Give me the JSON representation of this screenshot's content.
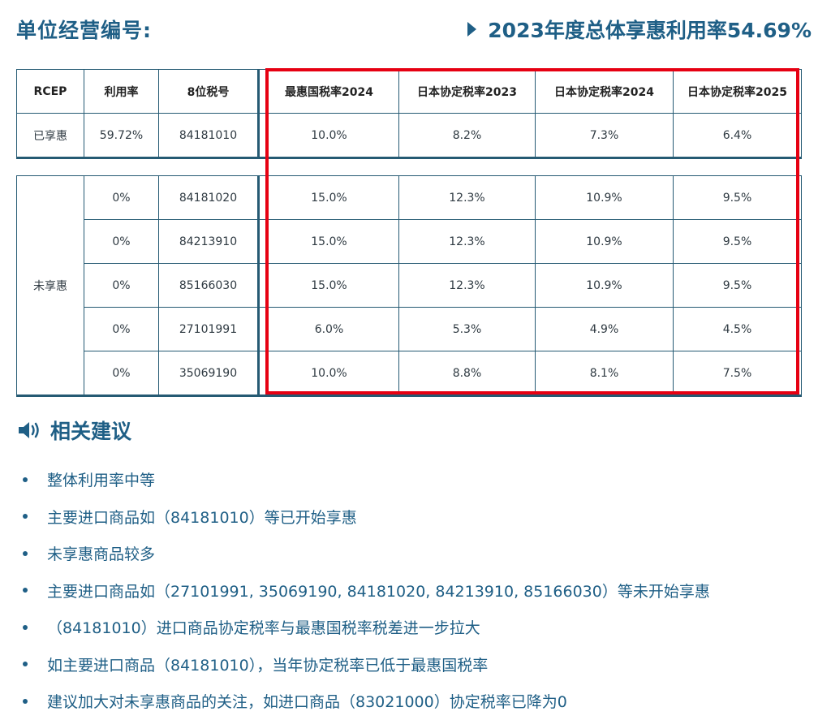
{
  "header": {
    "left_title": "单位经营编号:",
    "right_title": "2023年度总体享惠利用率54.69%"
  },
  "table1": {
    "headers": [
      "RCEP",
      "利用率",
      "8位税号",
      "最惠国税率2024",
      "日本协定税率2023",
      "日本协定税率2024",
      "日本协定税率2025"
    ],
    "row": [
      "已享惠",
      "59.72%",
      "84181010",
      "10.0%",
      "8.2%",
      "7.3%",
      "6.4%"
    ]
  },
  "table2": {
    "group_label": "未享惠",
    "rows": [
      [
        "0%",
        "84181020",
        "15.0%",
        "12.3%",
        "10.9%",
        "9.5%"
      ],
      [
        "0%",
        "84213910",
        "15.0%",
        "12.3%",
        "10.9%",
        "9.5%"
      ],
      [
        "0%",
        "85166030",
        "15.0%",
        "12.3%",
        "10.9%",
        "9.5%"
      ],
      [
        "0%",
        "27101991",
        "6.0%",
        "5.3%",
        "4.9%",
        "4.5%"
      ],
      [
        "0%",
        "35069190",
        "10.0%",
        "8.8%",
        "8.1%",
        "7.5%"
      ]
    ]
  },
  "advice": {
    "title": "相关建议",
    "icon": "speaker-icon",
    "items": [
      "整体利用率中等",
      "主要进口商品如（84181010）等已开始享惠",
      "未享惠商品较多",
      "主要进口商品如（27101991, 35069190, 84181020, 84213910, 85166030）等未开始享惠",
      "（84181010）进口商品协定税率与最惠国税率税差进一步拉大",
      "如主要进口商品（84181010），当年协定税率已低于最惠国税率",
      "建议加大对未享惠商品的关注，如进口商品（83021000）协定税率已降为0"
    ]
  },
  "colors": {
    "accent": "#1f5f86",
    "border": "#255a73",
    "highlight": "#e60012"
  }
}
